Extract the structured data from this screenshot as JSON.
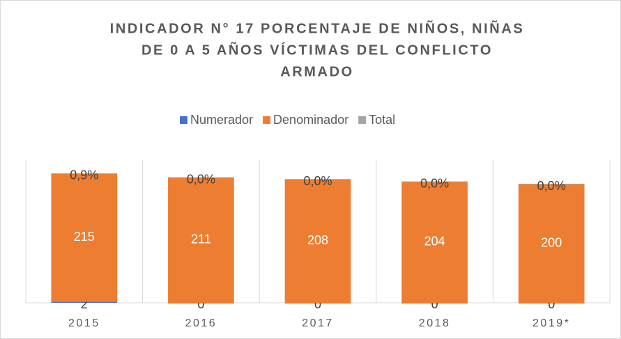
{
  "chart_data": {
    "type": "stacked_bar",
    "title": [
      "INDICADOR N° 17 PORCENTAJE DE NIÑOS, NIÑAS",
      "DE 0 A 5 AÑOS  VÍCTIMAS DEL CONFLICTO",
      "ARMADO"
    ],
    "categories": [
      "2015",
      "2016",
      "2017",
      "2018",
      "2019*"
    ],
    "series": [
      {
        "name": "Numerador",
        "color": "#4472c4",
        "values": [
          2,
          0,
          0,
          0,
          0
        ]
      },
      {
        "name": "Denominador",
        "color": "#ed7d31",
        "values": [
          215,
          211,
          208,
          204,
          200
        ]
      },
      {
        "name": "Total",
        "color": "#a5a5a5",
        "values": [
          0.9,
          0,
          0,
          0,
          0
        ],
        "value_labels": [
          "0,9%",
          "0,0%",
          "0,0%",
          "0,0%",
          "0,0%"
        ]
      }
    ],
    "ylim": [
      0,
      240
    ],
    "legend": "top"
  }
}
